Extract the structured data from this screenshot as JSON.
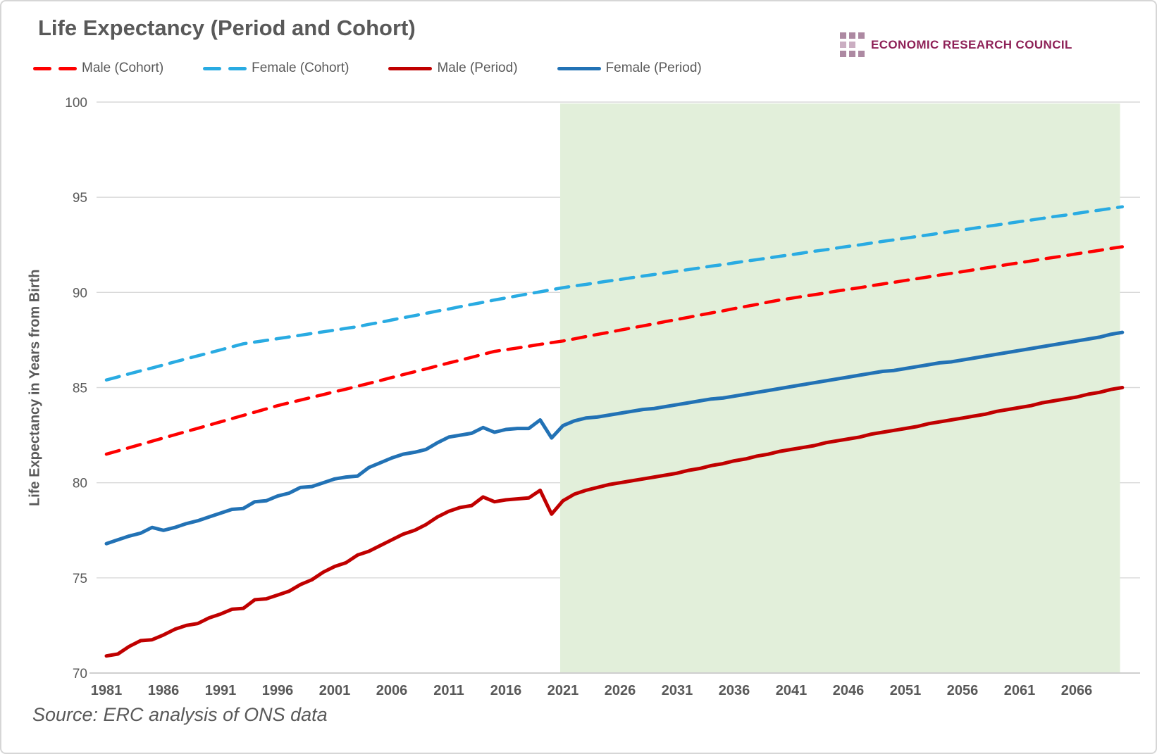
{
  "header": {
    "title": "Life Expectancy (Period and Cohort)"
  },
  "logo": {
    "text": "ECONOMIC RESEARCH COUNCIL",
    "text_color": "#8E2157",
    "square_color": "#AD89A2",
    "square_color_light": "#CBAEC2"
  },
  "legend": {
    "items": [
      {
        "label": "Male (Cohort)",
        "color": "#FE0000",
        "style": "dashed"
      },
      {
        "label": "Female (Cohort)",
        "color": "#29ABE2",
        "style": "dashed"
      },
      {
        "label": "Male (Period)",
        "color": "#C00000",
        "style": "solid"
      },
      {
        "label": "Female (Period)",
        "color": "#2272B5",
        "style": "solid"
      }
    ]
  },
  "source": {
    "text": "Source: ERC analysis of ONS data"
  },
  "chart_data": {
    "type": "line",
    "title": "Life Expectancy (Period and Cohort)",
    "xlabel": "",
    "ylabel": "Life Expectancy  in Years from Birth",
    "ylim": [
      70,
      100
    ],
    "xlim": [
      1981,
      2070
    ],
    "y_ticks": [
      70,
      75,
      80,
      85,
      90,
      95,
      100
    ],
    "x_ticks": [
      1981,
      1986,
      1991,
      1996,
      2001,
      2006,
      2011,
      2016,
      2021,
      2026,
      2031,
      2036,
      2041,
      2046,
      2051,
      2056,
      2061,
      2066
    ],
    "grid": "horizontal",
    "gridline_color": "#D9D9D9",
    "axis_line_color": "#BFBFBF",
    "projection_region": {
      "from": 2021,
      "to": 2069.8,
      "color": "#E2EFDA"
    },
    "legend_position": "top-left",
    "x": [
      1981,
      1982,
      1983,
      1984,
      1985,
      1986,
      1987,
      1988,
      1989,
      1990,
      1991,
      1992,
      1993,
      1994,
      1995,
      1996,
      1997,
      1998,
      1999,
      2000,
      2001,
      2002,
      2003,
      2004,
      2005,
      2006,
      2007,
      2008,
      2009,
      2010,
      2011,
      2012,
      2013,
      2014,
      2015,
      2016,
      2017,
      2018,
      2019,
      2020,
      2021,
      2022,
      2023,
      2024,
      2025,
      2026,
      2027,
      2028,
      2029,
      2030,
      2031,
      2032,
      2033,
      2034,
      2035,
      2036,
      2037,
      2038,
      2039,
      2040,
      2041,
      2042,
      2043,
      2044,
      2045,
      2046,
      2047,
      2048,
      2049,
      2050,
      2051,
      2052,
      2053,
      2054,
      2055,
      2056,
      2057,
      2058,
      2059,
      2060,
      2061,
      2062,
      2063,
      2064,
      2065,
      2066,
      2067,
      2068,
      2069,
      2070
    ],
    "series": [
      {
        "name": "Male (Cohort)",
        "color": "#FE0000",
        "dash": true,
        "width": 4.5,
        "values": [
          81.5,
          81.67,
          81.84,
          82.01,
          82.18,
          82.35,
          82.52,
          82.69,
          82.86,
          83.03,
          83.2,
          83.37,
          83.54,
          83.71,
          83.88,
          84.05,
          84.2,
          84.34,
          84.49,
          84.63,
          84.78,
          84.92,
          85.07,
          85.22,
          85.37,
          85.53,
          85.68,
          85.83,
          85.98,
          86.14,
          86.29,
          86.44,
          86.59,
          86.75,
          86.9,
          86.99,
          87.08,
          87.17,
          87.27,
          87.36,
          87.45,
          87.56,
          87.68,
          87.79,
          87.9,
          88.02,
          88.13,
          88.24,
          88.35,
          88.47,
          88.58,
          88.69,
          88.81,
          88.92,
          89.03,
          89.15,
          89.26,
          89.37,
          89.49,
          89.6,
          89.69,
          89.79,
          89.88,
          89.97,
          90.07,
          90.16,
          90.25,
          90.35,
          90.44,
          90.53,
          90.63,
          90.72,
          90.81,
          90.91,
          91.0,
          91.09,
          91.19,
          91.28,
          91.37,
          91.47,
          91.56,
          91.65,
          91.75,
          91.84,
          91.93,
          92.03,
          92.12,
          92.21,
          92.31,
          92.4
        ]
      },
      {
        "name": "Female (Cohort)",
        "color": "#29ABE2",
        "dash": true,
        "width": 4.5,
        "values": [
          85.4,
          85.56,
          85.72,
          85.88,
          86.03,
          86.19,
          86.35,
          86.51,
          86.67,
          86.82,
          86.98,
          87.14,
          87.3,
          87.39,
          87.48,
          87.57,
          87.66,
          87.75,
          87.84,
          87.93,
          88.02,
          88.11,
          88.2,
          88.32,
          88.43,
          88.55,
          88.67,
          88.78,
          88.9,
          89.02,
          89.13,
          89.25,
          89.37,
          89.48,
          89.6,
          89.71,
          89.82,
          89.93,
          90.03,
          90.14,
          90.25,
          90.34,
          90.42,
          90.51,
          90.6,
          90.68,
          90.77,
          90.86,
          90.94,
          91.03,
          91.12,
          91.2,
          91.29,
          91.38,
          91.46,
          91.55,
          91.64,
          91.72,
          91.81,
          91.9,
          91.98,
          92.07,
          92.16,
          92.24,
          92.33,
          92.42,
          92.5,
          92.59,
          92.68,
          92.76,
          92.85,
          92.94,
          93.02,
          93.11,
          93.2,
          93.28,
          93.37,
          93.46,
          93.54,
          93.63,
          93.72,
          93.8,
          93.89,
          93.98,
          94.06,
          94.15,
          94.24,
          94.32,
          94.41,
          94.5
        ]
      },
      {
        "name": "Male (Period)",
        "color": "#C00000",
        "dash": false,
        "width": 5,
        "values": [
          70.9,
          71.0,
          71.4,
          71.7,
          71.75,
          72.0,
          72.3,
          72.5,
          72.6,
          72.9,
          73.1,
          73.35,
          73.4,
          73.85,
          73.9,
          74.1,
          74.3,
          74.65,
          74.9,
          75.3,
          75.6,
          75.8,
          76.2,
          76.4,
          76.7,
          77.0,
          77.3,
          77.5,
          77.8,
          78.2,
          78.5,
          78.7,
          78.8,
          79.25,
          79.0,
          79.1,
          79.15,
          79.2,
          79.6,
          78.35,
          79.05,
          79.4,
          79.6,
          79.75,
          79.9,
          80.0,
          80.1,
          80.2,
          80.3,
          80.4,
          80.5,
          80.65,
          80.75,
          80.9,
          81.0,
          81.15,
          81.25,
          81.4,
          81.5,
          81.65,
          81.75,
          81.85,
          81.95,
          82.1,
          82.2,
          82.3,
          82.4,
          82.55,
          82.65,
          82.75,
          82.85,
          82.95,
          83.1,
          83.2,
          83.3,
          83.4,
          83.5,
          83.6,
          83.75,
          83.85,
          83.95,
          84.05,
          84.2,
          84.3,
          84.4,
          84.5,
          84.65,
          84.75,
          84.9,
          85.0
        ]
      },
      {
        "name": "Female (Period)",
        "color": "#2272B5",
        "dash": false,
        "width": 5,
        "values": [
          76.8,
          77.0,
          77.2,
          77.35,
          77.65,
          77.5,
          77.65,
          77.85,
          78.0,
          78.2,
          78.4,
          78.6,
          78.65,
          79.0,
          79.05,
          79.3,
          79.45,
          79.75,
          79.8,
          80.0,
          80.2,
          80.3,
          80.35,
          80.8,
          81.05,
          81.3,
          81.5,
          81.6,
          81.75,
          82.1,
          82.4,
          82.5,
          82.6,
          82.9,
          82.65,
          82.8,
          82.85,
          82.85,
          83.3,
          82.35,
          83.0,
          83.25,
          83.4,
          83.45,
          83.55,
          83.65,
          83.75,
          83.85,
          83.9,
          84.0,
          84.1,
          84.2,
          84.3,
          84.4,
          84.45,
          84.55,
          84.65,
          84.75,
          84.85,
          84.95,
          85.05,
          85.15,
          85.25,
          85.35,
          85.45,
          85.55,
          85.65,
          85.75,
          85.85,
          85.9,
          86.0,
          86.1,
          86.2,
          86.3,
          86.35,
          86.45,
          86.55,
          86.65,
          86.75,
          86.85,
          86.95,
          87.05,
          87.15,
          87.25,
          87.35,
          87.45,
          87.55,
          87.65,
          87.8,
          87.9
        ]
      }
    ]
  }
}
